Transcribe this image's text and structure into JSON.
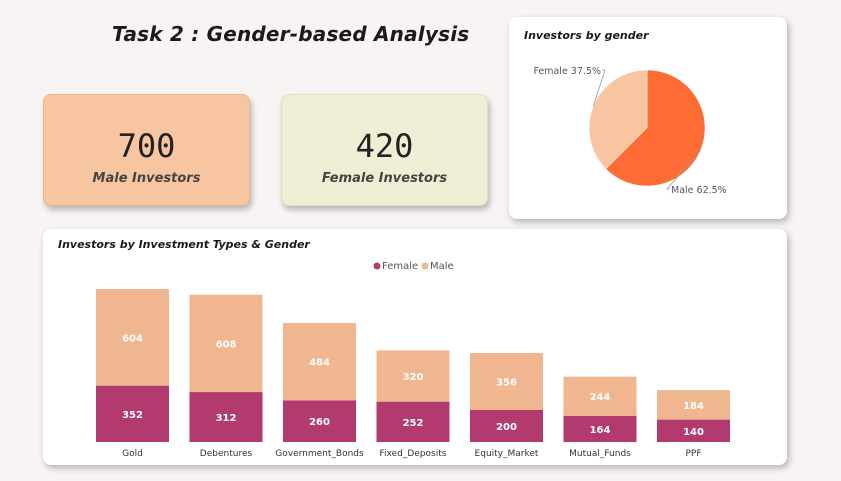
{
  "page_title": "Task 2 : Gender-based Analysis",
  "kpis": {
    "male": {
      "value": "700",
      "label": "Male Investors"
    },
    "female": {
      "value": "420",
      "label": "Female Investors"
    }
  },
  "colors": {
    "male": "#f0b68f",
    "female": "#b23a6e",
    "pie_male": "#ff6b35",
    "pie_female": "#f7c5a0"
  },
  "chart_data": [
    {
      "type": "pie",
      "title": "Investors by gender",
      "slices": [
        {
          "label": "Male",
          "value": 62.5,
          "display": "Male 62.5%"
        },
        {
          "label": "Female",
          "value": 37.5,
          "display": "Female 37.5%"
        }
      ]
    },
    {
      "type": "bar",
      "stacked": true,
      "title": "Investors by Investment Types & Gender",
      "legend_position": "top-center",
      "categories": [
        "Gold",
        "Debentures",
        "Government_Bonds",
        "Fixed_Deposits",
        "Equity_Market",
        "Mutual_Funds",
        "PPF"
      ],
      "series": [
        {
          "name": "Female",
          "values": [
            352,
            312,
            260,
            252,
            200,
            164,
            140
          ]
        },
        {
          "name": "Male",
          "values": [
            604,
            608,
            484,
            320,
            356,
            244,
            184
          ]
        }
      ]
    }
  ]
}
